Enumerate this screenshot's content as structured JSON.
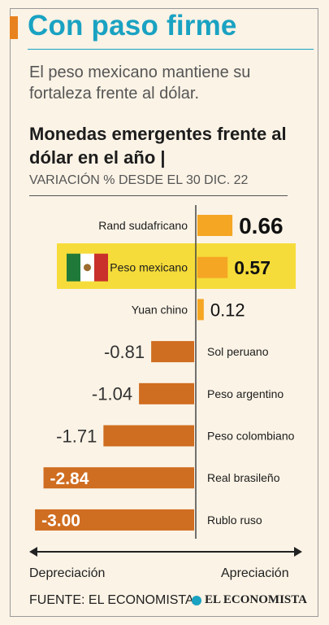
{
  "header": {
    "title": "Con paso firme",
    "subtitle": "El peso mexicano mantiene su fortaleza frente al dólar."
  },
  "chart_data": {
    "type": "bar",
    "orientation": "horizontal",
    "title": "Monedas emergentes frente al dólar en el año |",
    "subtitle": "VARIACIÓN % DESDE EL 30 DIC. 22",
    "categories": [
      "Rand sudafricano",
      "Peso mexicano",
      "Yuan chino",
      "Sol peruano",
      "Peso argentino",
      "Peso colombiano",
      "Real brasileño",
      "Rublo ruso"
    ],
    "value_labels": [
      "0.66",
      "0.57",
      "0.12",
      "-0.81",
      "-1.04",
      "-1.71",
      "-2.84",
      "-3.00"
    ],
    "values": [
      0.66,
      0.57,
      0.12,
      -0.81,
      -1.04,
      -1.71,
      -2.84,
      -3.0
    ],
    "highlight": "Peso mexicano",
    "xlim": [
      -3.0,
      0.66
    ],
    "grid": false,
    "colors": {
      "positive": "#f5a623",
      "negative": "#cf6d20",
      "highlight": "#f6dc3a",
      "axis": "#444444"
    },
    "axis_labels": {
      "left": "Depreciación",
      "right": "Apreciación"
    }
  },
  "footer": {
    "source": "FUENTE: EL ECONOMISTA",
    "logo_text": "EL ECONOMISTA"
  }
}
